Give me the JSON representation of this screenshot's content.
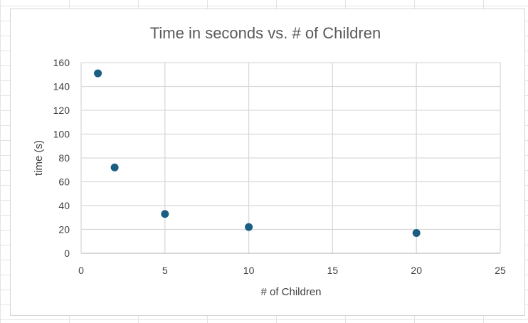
{
  "chart_data": {
    "type": "scatter",
    "title": "Time in seconds vs. # of Children",
    "xlabel": "# of Children",
    "ylabel": "time (s)",
    "xlim": [
      0,
      25
    ],
    "ylim": [
      0,
      160
    ],
    "x_ticks": [
      0,
      5,
      10,
      15,
      20,
      25
    ],
    "y_ticks": [
      0,
      20,
      40,
      60,
      80,
      100,
      120,
      140,
      160
    ],
    "grid": true,
    "legend": "none",
    "marker_color": "#1a5e84",
    "points": [
      {
        "x": 1,
        "y": 151
      },
      {
        "x": 2,
        "y": 72
      },
      {
        "x": 5,
        "y": 33
      },
      {
        "x": 10,
        "y": 22
      },
      {
        "x": 20,
        "y": 17
      }
    ]
  }
}
